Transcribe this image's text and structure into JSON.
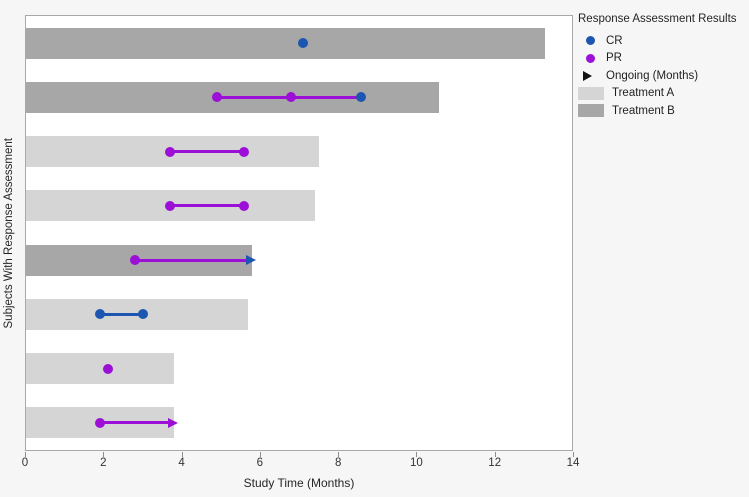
{
  "figure": {
    "background": "#f6f6f6",
    "plot_background": "#ffffff",
    "plot_border": "#a8a8a8"
  },
  "colors": {
    "cr": "#1c56b0",
    "pr": "#9c0fd6",
    "ongoing": "#111111",
    "treatment_a": "#d5d5d5",
    "treatment_b": "#a7a7a7"
  },
  "legend": {
    "title": "Response Assessment Results",
    "items": [
      {
        "label": "CR",
        "marker": "dot",
        "color": "cr"
      },
      {
        "label": "PR",
        "marker": "dot",
        "color": "pr"
      },
      {
        "label": "Ongoing (Months)",
        "marker": "arrow",
        "color": "ongoing"
      },
      {
        "label": "Treatment A",
        "marker": "swatch",
        "color": "treatment_a"
      },
      {
        "label": "Treatment B",
        "marker": "swatch",
        "color": "treatment_b"
      }
    ]
  },
  "chart_data": {
    "type": "bar",
    "subtype": "swimmer",
    "orientation": "horizontal",
    "xlabel": "Study Time (Months)",
    "ylabel": "Subjects With Response Assessment",
    "xlim": [
      0,
      14
    ],
    "xticks": [
      0,
      2,
      4,
      6,
      8,
      10,
      12,
      14
    ],
    "grid": false,
    "legend_position": "right",
    "n_subjects": 8,
    "subjects": [
      {
        "treatment": "B",
        "bar_length": 13.3,
        "markers": [
          {
            "type": "CR",
            "x": 7.1
          }
        ],
        "line": null,
        "arrow": null
      },
      {
        "treatment": "B",
        "bar_length": 10.6,
        "markers": [
          {
            "type": "PR",
            "x": 4.9
          },
          {
            "type": "PR",
            "x": 6.8
          },
          {
            "type": "CR",
            "x": 8.6
          }
        ],
        "line": {
          "x1": 4.9,
          "x2": 8.6,
          "type": "PR"
        },
        "arrow": null
      },
      {
        "treatment": "A",
        "bar_length": 7.5,
        "markers": [
          {
            "type": "PR",
            "x": 3.7
          },
          {
            "type": "PR",
            "x": 5.6
          }
        ],
        "line": {
          "x1": 3.7,
          "x2": 5.6,
          "type": "PR"
        },
        "arrow": null
      },
      {
        "treatment": "A",
        "bar_length": 7.4,
        "markers": [
          {
            "type": "PR",
            "x": 3.7
          },
          {
            "type": "PR",
            "x": 5.6
          }
        ],
        "line": {
          "x1": 3.7,
          "x2": 5.6,
          "type": "PR"
        },
        "arrow": null
      },
      {
        "treatment": "B",
        "bar_length": 5.8,
        "markers": [
          {
            "type": "PR",
            "x": 2.8
          }
        ],
        "line": {
          "x1": 2.8,
          "x2": 5.8,
          "type": "PR"
        },
        "arrow": {
          "tip": 5.9,
          "type": "CR"
        }
      },
      {
        "treatment": "A",
        "bar_length": 5.7,
        "markers": [
          {
            "type": "CR",
            "x": 1.9
          },
          {
            "type": "CR",
            "x": 3.0
          }
        ],
        "line": {
          "x1": 1.9,
          "x2": 3.0,
          "type": "CR"
        },
        "arrow": null
      },
      {
        "treatment": "A",
        "bar_length": 3.8,
        "markers": [
          {
            "type": "PR",
            "x": 2.1
          }
        ],
        "line": null,
        "arrow": null
      },
      {
        "treatment": "A",
        "bar_length": 3.8,
        "markers": [
          {
            "type": "PR",
            "x": 1.9
          }
        ],
        "line": {
          "x1": 1.9,
          "x2": 3.7,
          "type": "PR"
        },
        "arrow": {
          "tip": 3.9,
          "type": "PR"
        }
      }
    ]
  }
}
